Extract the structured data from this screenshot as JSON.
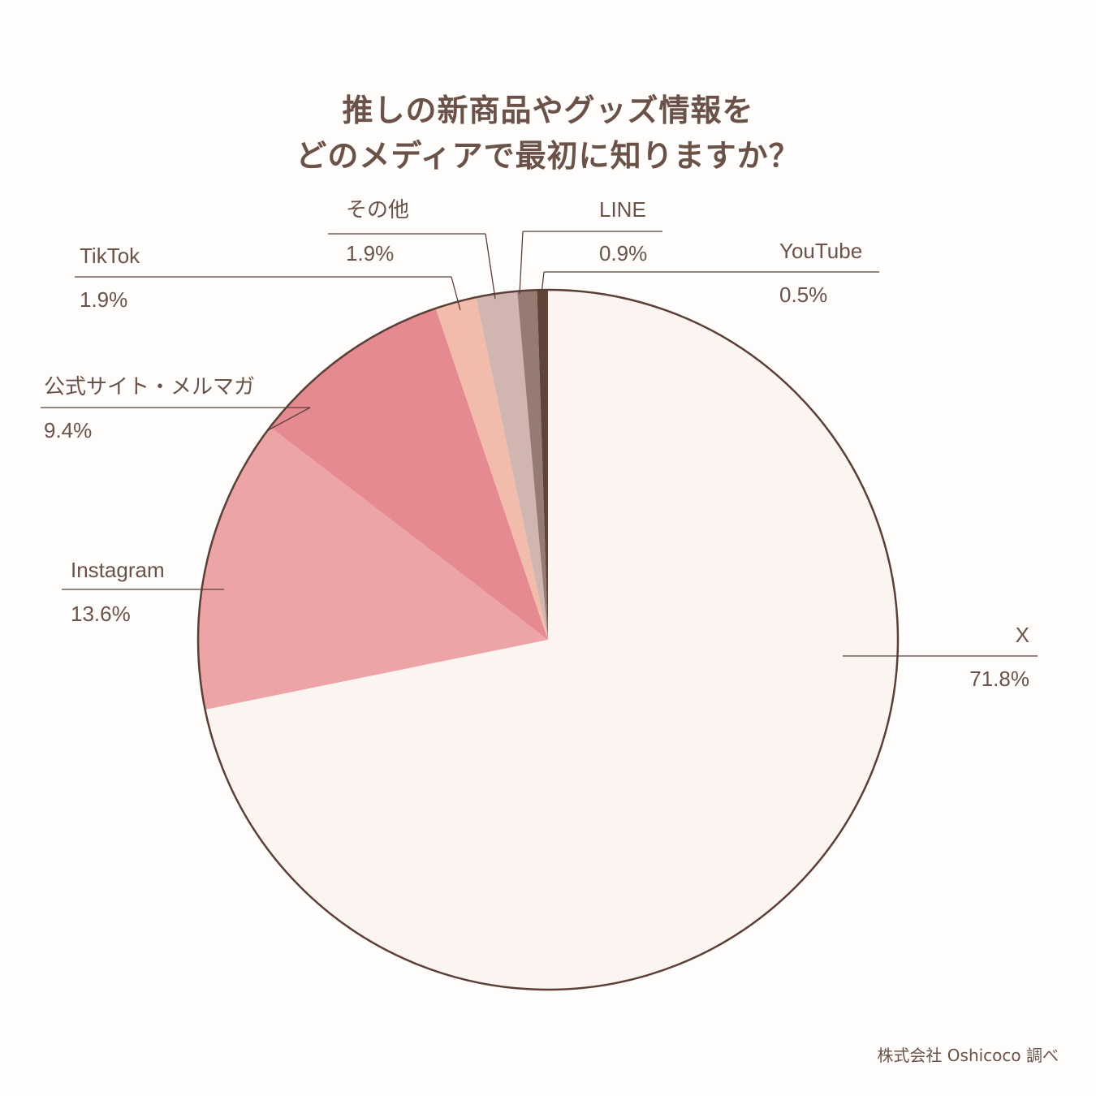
{
  "title": {
    "line1": "推しの新商品やグッズ情報を",
    "line2": "どのメディアで最初に知りますか？"
  },
  "credit": "株式会社 Oshicoco 調べ",
  "chart_data": {
    "type": "pie",
    "start": "12 o'clock",
    "direction": "clockwise",
    "slices": [
      {
        "label": "X",
        "value": 71.8,
        "value_label": "71.8%",
        "color": "#fcf4f1"
      },
      {
        "label": "Instagram",
        "value": 13.6,
        "value_label": "13.6%",
        "color": "#eda4a7"
      },
      {
        "label": "公式サイト・メルマガ",
        "value": 9.4,
        "value_label": "9.4%",
        "color": "#e68a91"
      },
      {
        "label": "TikTok",
        "value": 1.9,
        "value_label": "1.9%",
        "color": "#f2bcad"
      },
      {
        "label": "その他",
        "value": 1.9,
        "value_label": "1.9%",
        "color": "#d0b5b0"
      },
      {
        "label": "LINE",
        "value": 0.9,
        "value_label": "0.9%",
        "color": "#957b71"
      },
      {
        "label": "YouTube",
        "value": 0.5,
        "value_label": "0.5%",
        "color": "#5e4439"
      }
    ],
    "outline_color": "#5a3f36"
  }
}
